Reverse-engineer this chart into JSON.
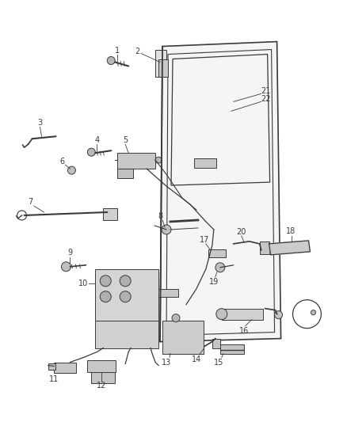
{
  "bg_color": "#ffffff",
  "line_color": "#3a3a3a",
  "label_color": "#3a3a3a",
  "fig_width": 4.38,
  "fig_height": 5.33,
  "dpi": 100,
  "label_fontsize": 7.0
}
